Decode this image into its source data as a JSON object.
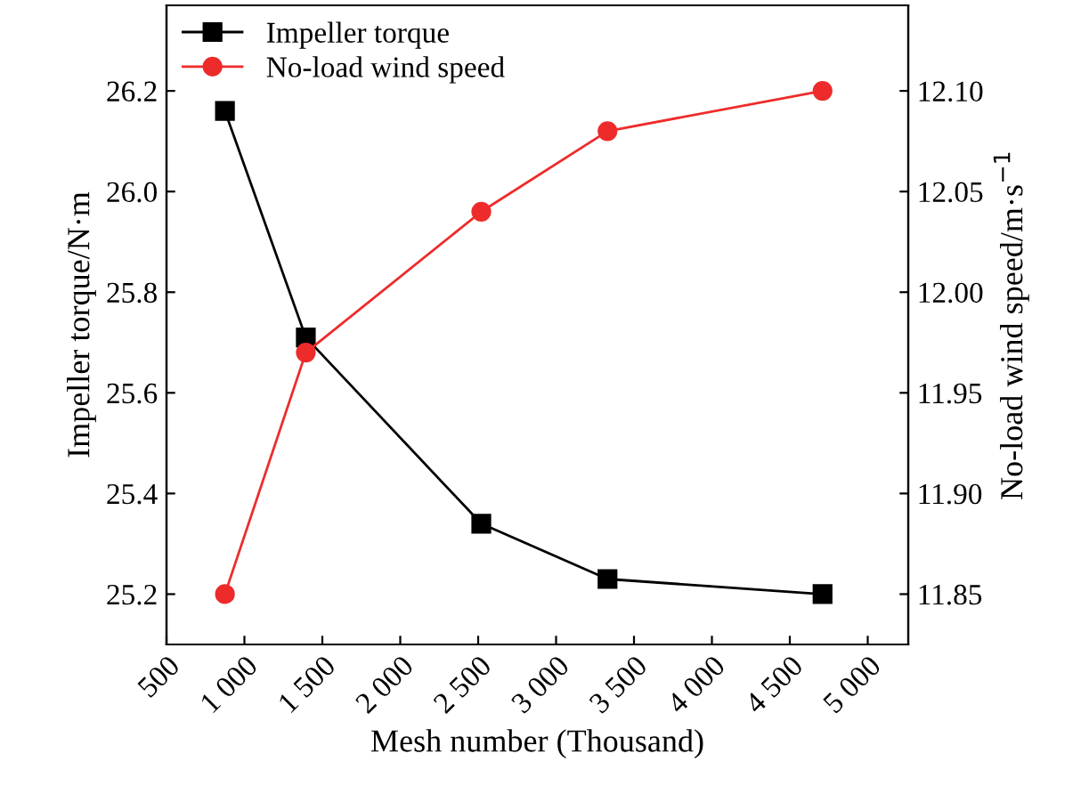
{
  "chart_data": {
    "type": "line",
    "xlabel": "Mesh number (Thousand)",
    "ylabel": "Impeller torque/N·m",
    "y2label": "No-load wind speed/m·s$^{−1}$",
    "x": [
      875,
      1394,
      2520,
      3330,
      4710
    ],
    "series": [
      {
        "name": "Impeller torque",
        "color": "#000000",
        "marker": "square",
        "values": [
          26.16,
          25.71,
          25.34,
          25.23,
          25.2
        ]
      },
      {
        "name": "No-load wind speed",
        "color": "#ee2b2b",
        "marker": "circle",
        "axis": "y2",
        "values": [
          11.85,
          11.97,
          12.04,
          12.08,
          12.1
        ]
      }
    ],
    "xlim": [
      500,
      5260
    ],
    "xticks": [
      500,
      {
        "value": 1000,
        "label": "1 000"
      },
      {
        "value": 1500,
        "label": "1 500"
      },
      {
        "value": 2000,
        "label": "2 000"
      },
      {
        "value": 2500,
        "label": "2 500"
      },
      {
        "value": 3000,
        "label": "3 000"
      },
      {
        "value": 3500,
        "label": "3 500"
      },
      {
        "value": 4000,
        "label": "4 000"
      },
      {
        "value": 4500,
        "label": "4 500"
      },
      {
        "value": 5000,
        "label": "5 000"
      }
    ],
    "ylim": [
      25.1,
      26.37
    ],
    "yticks": [
      {
        "value": 25.2,
        "label": "25.2"
      },
      {
        "value": 25.4,
        "label": "25.4"
      },
      {
        "value": 25.6,
        "label": "25.6"
      },
      {
        "value": 25.8,
        "label": "25.8"
      },
      {
        "value": 26.0,
        "label": "26.0"
      },
      {
        "value": 26.2,
        "label": "26.2"
      }
    ],
    "y2lim": [
      11.825,
      12.1425
    ],
    "y2ticks": [
      {
        "value": 11.85,
        "label": "11.85"
      },
      {
        "value": 11.9,
        "label": "11.90"
      },
      {
        "value": 11.95,
        "label": "11.95"
      },
      {
        "value": 12.0,
        "label": "12.00"
      },
      {
        "value": 12.05,
        "label": "12.05"
      },
      {
        "value": 12.1,
        "label": "12.10"
      }
    ],
    "grid": false,
    "legend": "top left",
    "line_style": "solid"
  }
}
